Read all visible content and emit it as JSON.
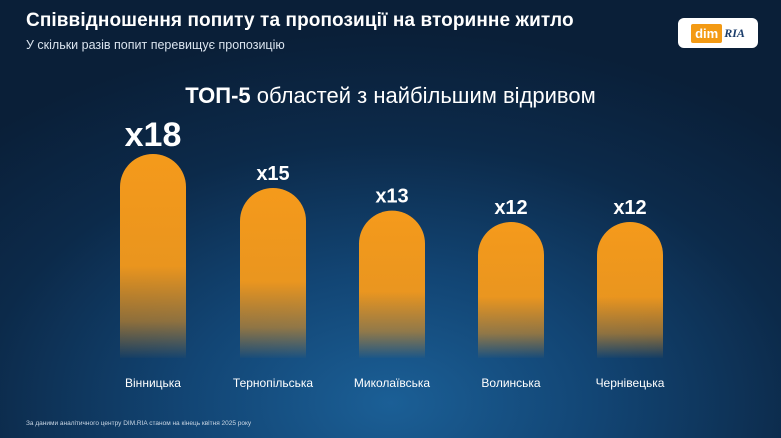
{
  "header": {
    "title": "Співвідношення попиту та пропозиції на вторинне житло",
    "subtitle": "У скільки разів попит перевищує пропозицію"
  },
  "logo": {
    "dim": "dim",
    "ria": "RIA"
  },
  "chart_heading": {
    "strong": "ТОП-5",
    "rest": "областей з найбільшим відривом"
  },
  "chart_data": {
    "type": "bar",
    "categories": [
      "Вінницька",
      "Тернопільська",
      "Миколаївська",
      "Волинська",
      "Чернівецька"
    ],
    "values": [
      18,
      15,
      13,
      12,
      12
    ],
    "value_labels": [
      "x18",
      "x15",
      "x13",
      "x12",
      "x12"
    ],
    "bar_color": "#f59a1b",
    "grid": false
  },
  "footnote": "За даними аналітичного центру DIM.RIA станом на кінець квітня 2025 року"
}
